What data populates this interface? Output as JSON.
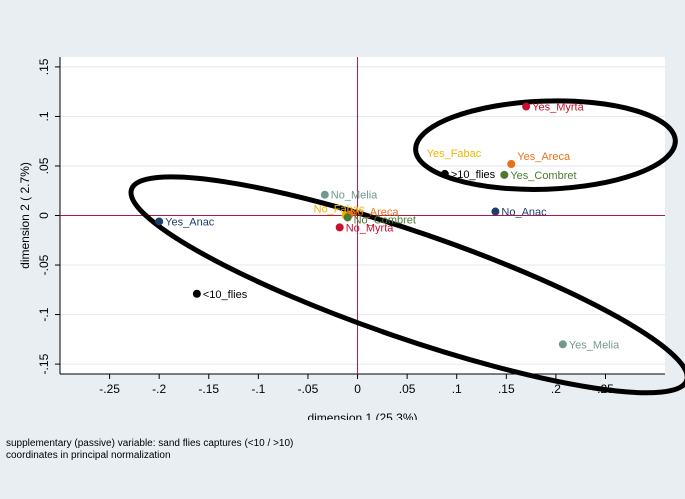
{
  "chart_data": {
    "type": "scatter",
    "xlabel": "dimension 1 (25.3%)",
    "ylabel": "dimension 2 ( 2.7%)",
    "xlim": [
      -0.3,
      0.31
    ],
    "ylim": [
      -0.16,
      0.16
    ],
    "xticks": [
      -0.25,
      -0.2,
      -0.15,
      -0.1,
      -0.05,
      0,
      0.05,
      0.1,
      0.15,
      0.2,
      0.25
    ],
    "xtick_labels": [
      "-.25",
      "-.2",
      "-.15",
      "-.1",
      "-.05",
      "0",
      ".05",
      ".1",
      ".15",
      ".2",
      ".25"
    ],
    "yticks": [
      -0.15,
      -0.1,
      -0.05,
      0,
      0.05,
      0.1,
      0.15
    ],
    "ytick_labels": [
      "-.15",
      "-.1",
      "-.05",
      "0",
      ".05",
      ".1",
      ".15"
    ],
    "grid": true,
    "reference_lines": {
      "x": 0,
      "y": 0,
      "color": "#b0174a"
    },
    "points": [
      {
        "label": "Yes_Myrta",
        "x": 0.17,
        "y": 0.11,
        "color": "#c8102e"
      },
      {
        "label": "Yes_Fabac",
        "x": 0.155,
        "y": 0.052,
        "color": "#f0b400"
      },
      {
        "label": "Yes_Areca",
        "x": 0.155,
        "y": 0.052,
        "color": "#e8721c"
      },
      {
        "label": ">10_flies",
        "x": 0.088,
        "y": 0.042,
        "color": "#000000"
      },
      {
        "label": "Yes_Combret",
        "x": 0.148,
        "y": 0.041,
        "color": "#4c7a34"
      },
      {
        "label": "No_Anac",
        "x": 0.139,
        "y": 0.004,
        "color": "#1f3d6b"
      },
      {
        "label": "No_Melia",
        "x": -0.033,
        "y": 0.021,
        "color": "#6f9a8d"
      },
      {
        "label": "No_Fabac",
        "x": -0.012,
        "y": 0.0,
        "color": "#f0b400"
      },
      {
        "label": "No_Areca",
        "x": -0.008,
        "y": 0.001,
        "color": "#e8721c"
      },
      {
        "label": "No_Combret",
        "x": -0.01,
        "y": -0.002,
        "color": "#4c7a34"
      },
      {
        "label": "No_Myrta",
        "x": -0.018,
        "y": -0.012,
        "color": "#c8102e"
      },
      {
        "label": "Yes_Anac",
        "x": -0.2,
        "y": -0.006,
        "color": "#1f3d6b"
      },
      {
        "label": "<10_flies",
        "x": -0.162,
        "y": -0.079,
        "color": "#000000"
      },
      {
        "label": "Yes_Melia",
        "x": 0.207,
        "y": -0.13,
        "color": "#6f9a8d"
      }
    ],
    "ellipses": [
      {
        "name": "upper-right-cluster",
        "cx": 0.1895,
        "cy": 0.071,
        "rx": 0.131,
        "ry": 0.0445,
        "angle_deg": -2,
        "color": "#000000"
      },
      {
        "name": "lower-left-cluster",
        "cx": 0.052,
        "cy": -0.07,
        "rx": 0.296,
        "ry": 0.0535,
        "angle_deg": 19,
        "color": "#000000"
      }
    ]
  },
  "footnotes": {
    "line1": "supplementary (passive) variable: sand flies captures (<10 / >10)",
    "line2": "coordinates in principal normalization"
  }
}
